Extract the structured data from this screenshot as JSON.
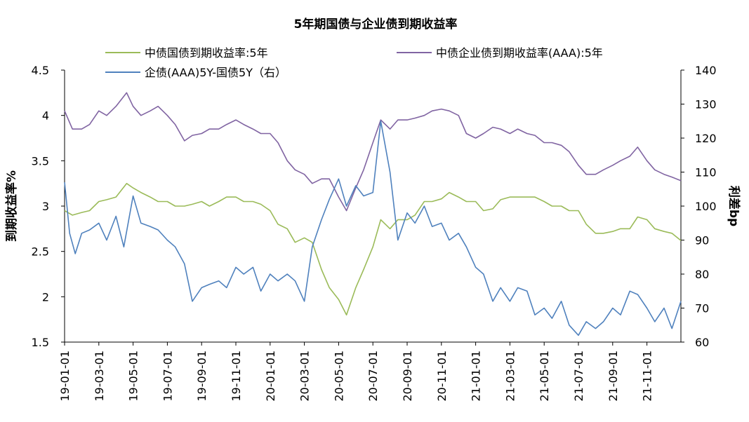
{
  "chart_data": {
    "type": "line",
    "title": "5年期国债与企业债到期收益率",
    "left_axis_label": "到期收益率%",
    "right_axis_label": "利差bp",
    "left_ylim": [
      1.5,
      4.5
    ],
    "right_ylim": [
      60,
      140
    ],
    "left_ticks": [
      "1.5",
      "2",
      "2.5",
      "3",
      "3.5",
      "4",
      "4.5"
    ],
    "right_ticks": [
      "60",
      "70",
      "80",
      "90",
      "100",
      "110",
      "120",
      "130",
      "140"
    ],
    "x_ticks": [
      "19-01-01",
      "19-03-01",
      "19-05-01",
      "19-07-01",
      "19-09-01",
      "19-11-01",
      "20-01-01",
      "20-03-01",
      "20-05-01",
      "20-07-01",
      "20-09-01",
      "20-11-01",
      "21-01-01",
      "21-03-01",
      "21-05-01",
      "21-07-01",
      "21-09-01",
      "21-11-01"
    ],
    "x_unit": "month",
    "x_range": [
      "19-01-01",
      "21-12-31"
    ],
    "grid": false,
    "legend_placement": "top",
    "series": [
      {
        "name": "中债国债到期收益率:5年",
        "axis": "left",
        "color": "#9BBB59",
        "x": [
          "19-01-01",
          "19-01-15",
          "19-02-01",
          "19-02-15",
          "19-03-01",
          "19-03-15",
          "19-04-01",
          "19-04-20",
          "19-05-01",
          "19-05-15",
          "19-06-01",
          "19-06-15",
          "19-07-01",
          "19-07-15",
          "19-08-01",
          "19-08-15",
          "19-09-01",
          "19-09-15",
          "19-10-01",
          "19-10-15",
          "19-11-01",
          "19-11-15",
          "19-12-01",
          "19-12-15",
          "20-01-01",
          "20-01-15",
          "20-02-01",
          "20-02-15",
          "20-03-01",
          "20-03-15",
          "20-04-01",
          "20-04-15",
          "20-05-01",
          "20-05-15",
          "20-06-01",
          "20-06-15",
          "20-07-01",
          "20-07-15",
          "20-08-01",
          "20-08-15",
          "20-09-01",
          "20-09-15",
          "20-10-01",
          "20-10-15",
          "20-11-01",
          "20-11-15",
          "20-12-01",
          "20-12-15",
          "21-01-01",
          "21-01-15",
          "21-02-01",
          "21-02-15",
          "21-03-01",
          "21-03-15",
          "21-04-01",
          "21-04-15",
          "21-05-01",
          "21-05-15",
          "21-06-01",
          "21-06-15",
          "21-07-01",
          "21-07-15",
          "21-08-01",
          "21-08-15",
          "21-09-01",
          "21-09-15",
          "21-10-01",
          "21-10-15",
          "21-11-01",
          "21-11-15",
          "21-12-01",
          "21-12-15",
          "21-12-31"
        ],
        "values": [
          2.95,
          2.9,
          2.93,
          2.95,
          3.05,
          3.07,
          3.1,
          3.25,
          3.2,
          3.15,
          3.1,
          3.05,
          3.05,
          3.0,
          3.0,
          3.02,
          3.05,
          3.0,
          3.05,
          3.1,
          3.1,
          3.05,
          3.05,
          3.02,
          2.95,
          2.8,
          2.75,
          2.6,
          2.65,
          2.6,
          2.3,
          2.1,
          1.97,
          1.8,
          2.1,
          2.3,
          2.55,
          2.85,
          2.75,
          2.85,
          2.85,
          2.9,
          3.05,
          3.05,
          3.08,
          3.15,
          3.1,
          3.05,
          3.05,
          2.95,
          2.97,
          3.07,
          3.1,
          3.1,
          3.1,
          3.1,
          3.05,
          3.0,
          3.0,
          2.95,
          2.95,
          2.8,
          2.7,
          2.7,
          2.72,
          2.75,
          2.75,
          2.88,
          2.85,
          2.75,
          2.72,
          2.7,
          2.62
        ]
      },
      {
        "name": "中债企业债到期收益率(AAA):5年",
        "axis": "left",
        "color": "#8064A2",
        "x": [
          "19-01-01",
          "19-01-15",
          "19-02-01",
          "19-02-15",
          "19-03-01",
          "19-03-15",
          "19-04-01",
          "19-04-20",
          "19-05-01",
          "19-05-15",
          "19-06-01",
          "19-06-15",
          "19-07-01",
          "19-07-15",
          "19-08-01",
          "19-08-15",
          "19-09-01",
          "19-09-15",
          "19-10-01",
          "19-10-15",
          "19-11-01",
          "19-11-15",
          "19-12-01",
          "19-12-15",
          "20-01-01",
          "20-01-15",
          "20-02-01",
          "20-02-15",
          "20-03-01",
          "20-03-15",
          "20-04-01",
          "20-04-15",
          "20-05-01",
          "20-05-15",
          "20-06-01",
          "20-06-15",
          "20-07-01",
          "20-07-15",
          "20-08-01",
          "20-08-15",
          "20-09-01",
          "20-09-15",
          "20-10-01",
          "20-10-15",
          "20-11-01",
          "20-11-15",
          "20-12-01",
          "20-12-15",
          "21-01-01",
          "21-01-15",
          "21-02-01",
          "21-02-15",
          "21-03-01",
          "21-03-15",
          "21-04-01",
          "21-04-15",
          "21-05-01",
          "21-05-15",
          "21-06-01",
          "21-06-15",
          "21-07-01",
          "21-07-15",
          "21-08-01",
          "21-08-15",
          "21-09-01",
          "21-09-15",
          "21-10-01",
          "21-10-15",
          "21-11-01",
          "21-11-15",
          "21-12-01",
          "21-12-15",
          "21-12-31"
        ],
        "values": [
          4.05,
          3.85,
          3.85,
          3.9,
          4.05,
          4.0,
          4.1,
          4.25,
          4.1,
          4.0,
          4.05,
          4.1,
          4.0,
          3.9,
          3.72,
          3.78,
          3.8,
          3.85,
          3.85,
          3.9,
          3.95,
          3.9,
          3.85,
          3.8,
          3.8,
          3.7,
          3.5,
          3.4,
          3.35,
          3.25,
          3.3,
          3.3,
          3.1,
          2.95,
          3.2,
          3.4,
          3.7,
          3.95,
          3.85,
          3.95,
          3.95,
          3.97,
          4.0,
          4.05,
          4.07,
          4.05,
          4.0,
          3.8,
          3.75,
          3.8,
          3.87,
          3.85,
          3.8,
          3.85,
          3.8,
          3.78,
          3.7,
          3.7,
          3.67,
          3.6,
          3.45,
          3.35,
          3.35,
          3.4,
          3.45,
          3.5,
          3.55,
          3.65,
          3.5,
          3.4,
          3.35,
          3.32,
          3.28
        ]
      },
      {
        "name": "企债(AAA)5Y-国债5Y（右）",
        "axis": "right",
        "color": "#4F81BD",
        "x": [
          "19-01-01",
          "19-01-10",
          "19-01-20",
          "19-02-01",
          "19-02-15",
          "19-03-01",
          "19-03-15",
          "19-04-01",
          "19-04-15",
          "19-05-01",
          "19-05-15",
          "19-06-01",
          "19-06-15",
          "19-07-01",
          "19-07-15",
          "19-08-01",
          "19-08-15",
          "19-09-01",
          "19-09-15",
          "19-10-01",
          "19-10-15",
          "19-11-01",
          "19-11-15",
          "19-12-01",
          "19-12-15",
          "20-01-01",
          "20-01-15",
          "20-02-01",
          "20-02-15",
          "20-03-01",
          "20-03-15",
          "20-04-01",
          "20-04-15",
          "20-05-01",
          "20-05-15",
          "20-06-01",
          "20-06-15",
          "20-07-01",
          "20-07-15",
          "20-08-01",
          "20-08-15",
          "20-09-01",
          "20-09-15",
          "20-10-01",
          "20-10-15",
          "20-11-01",
          "20-11-15",
          "20-12-01",
          "20-12-15",
          "21-01-01",
          "21-01-15",
          "21-02-01",
          "21-02-15",
          "21-03-01",
          "21-03-15",
          "21-04-01",
          "21-04-15",
          "21-05-01",
          "21-05-15",
          "21-06-01",
          "21-06-15",
          "21-07-01",
          "21-07-15",
          "21-08-01",
          "21-08-15",
          "21-09-01",
          "21-09-15",
          "21-10-01",
          "21-10-15",
          "21-11-01",
          "21-11-15",
          "21-12-01",
          "21-12-15",
          "21-12-31"
        ],
        "values": [
          107,
          92,
          86,
          92,
          93,
          95,
          90,
          97,
          88,
          103,
          95,
          94,
          93,
          90,
          88,
          83,
          72,
          76,
          77,
          78,
          76,
          82,
          80,
          82,
          75,
          80,
          78,
          80,
          78,
          72,
          88,
          96,
          102,
          108,
          100,
          106,
          103,
          104,
          125,
          110,
          90,
          98,
          95,
          100,
          94,
          95,
          90,
          92,
          88,
          82,
          80,
          72,
          76,
          72,
          76,
          75,
          68,
          70,
          67,
          72,
          65,
          62,
          66,
          64,
          66,
          70,
          68,
          75,
          74,
          70,
          66,
          70,
          64,
          72
        ]
      }
    ]
  }
}
